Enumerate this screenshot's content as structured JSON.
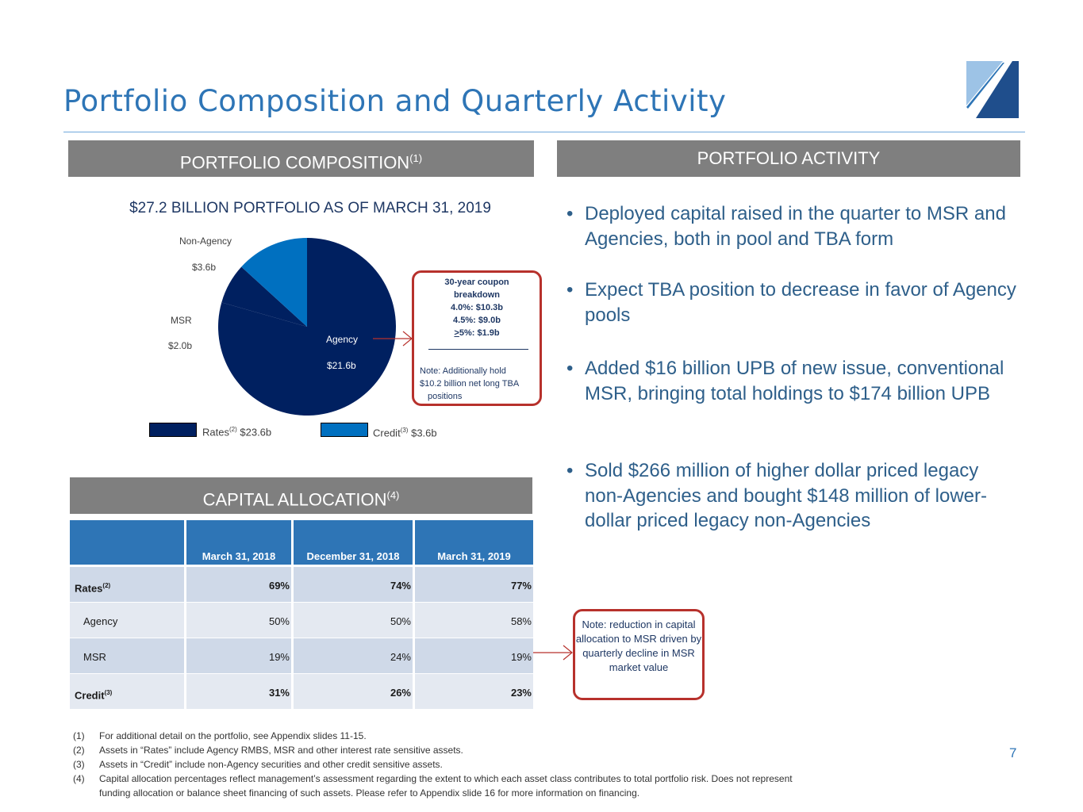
{
  "slide": {
    "title": "Portfolio Composition and Quarterly Activity",
    "page_number": "7",
    "colors": {
      "accent": "#2e75b6",
      "navy": "#002060",
      "header_gray": "#7f7f7f",
      "callout_red": "#b7312c"
    }
  },
  "composition": {
    "header": "PORTFOLIO COMPOSITION",
    "header_sup": "(1)",
    "pie_title": "$27.2 BILLION PORTFOLIO AS OF MARCH 31, 2019",
    "callout": {
      "heading1": "30-year coupon",
      "heading2": "breakdown",
      "line1": "4.0%: $10.3b",
      "line2": "4.5%: $9.0b",
      "line3_prefix": ">",
      "line3": "5%: $1.9b",
      "note1": "Note: Additionally hold",
      "note2": "$10.2 billion net long TBA",
      "note3": "positions"
    },
    "legend": [
      {
        "label": "Rates",
        "sup": "(2)",
        "value": "$23.6b",
        "color": "#002060"
      },
      {
        "label": "Credit",
        "sup": "(3)",
        "value": "$3.6b",
        "color": "#0070c0"
      }
    ]
  },
  "chart_data": {
    "type": "pie",
    "slices": [
      {
        "label": "Agency",
        "value_label": "$21.6b",
        "value": 21.6,
        "color": "#002060"
      },
      {
        "label": "MSR",
        "value_label": "$2.0b",
        "value": 2.0,
        "color": "#002060"
      },
      {
        "label": "Non-Agency",
        "value_label": "$3.6b",
        "value": 3.6,
        "color": "#0070c0"
      }
    ],
    "title": "$27.2 BILLION PORTFOLIO AS OF MARCH 31, 2019"
  },
  "activity": {
    "header": "PORTFOLIO ACTIVITY",
    "bullet_char": "•",
    "bullets": [
      "Deployed capital raised in the quarter to MSR and Agencies, both in pool and TBA form",
      "Expect TBA position to decrease in favor of Agency pools",
      "Added $16 billion UPB of new issue, conventional MSR, bringing total holdings to $174 billion UPB",
      "Sold $266 million of higher dollar priced legacy non-Agencies and bought $148 million of lower-dollar priced legacy non-Agencies"
    ]
  },
  "capital": {
    "header": "CAPITAL ALLOCATION",
    "header_sup": "(4)",
    "columns": [
      "March 31, 2018",
      "December 31, 2018",
      "March 31, 2019"
    ],
    "rows": [
      {
        "label": "Rates",
        "sup": "(2)",
        "values": [
          "69%",
          "74%",
          "77%"
        ]
      },
      {
        "label": "Agency",
        "sup": "",
        "values": [
          "50%",
          "50%",
          "58%"
        ]
      },
      {
        "label": "MSR",
        "sup": "",
        "values": [
          "19%",
          "24%",
          "19%"
        ]
      },
      {
        "label": "Credit",
        "sup": "(3)",
        "values": [
          "31%",
          "26%",
          "23%"
        ]
      }
    ],
    "callout": "Note: reduction in capital allocation to MSR driven by quarterly decline in MSR market value"
  },
  "footnotes": [
    {
      "num": "(1)",
      "text": "For additional detail on the portfolio, see Appendix slides 11-15."
    },
    {
      "num": "(2)",
      "text": "Assets in “Rates” include Agency RMBS, MSR and other interest rate sensitive assets."
    },
    {
      "num": "(3)",
      "text": "Assets in “Credit” include non-Agency securities and other credit sensitive assets."
    },
    {
      "num": "(4)",
      "text": "Capital allocation percentages reflect management’s assessment regarding the extent to which each asset class contributes to total portfolio risk.  Does not represent"
    },
    {
      "num": "",
      "text": "funding allocation or balance sheet financing of such assets.  Please refer to Appendix slide 16 for more information on financing."
    }
  ]
}
